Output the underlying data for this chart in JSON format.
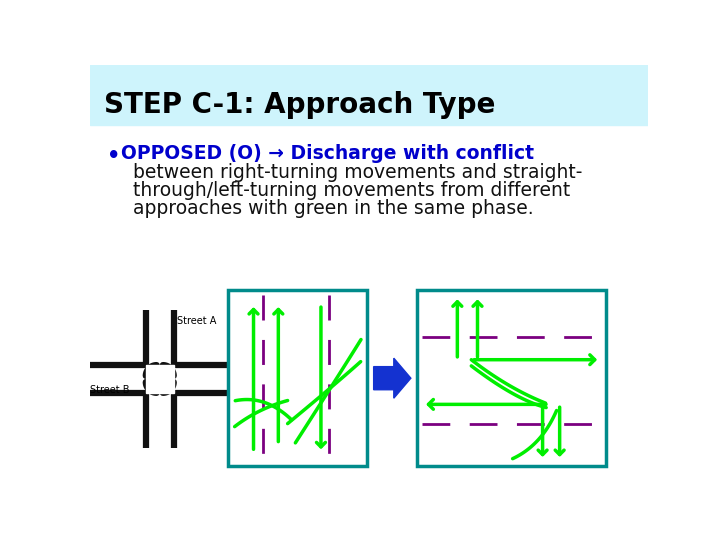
{
  "title": "STEP C-1: Approach Type",
  "title_bg": "#cef4fc",
  "title_color": "#000000",
  "body_bg": "#ffffff",
  "bullet_bold_text": "OPPOSED (O) → Discharge with conflict",
  "bullet_bold_color": "#0000cc",
  "bullet_normal_lines": [
    "between right-turning movements and straight-",
    "through/left-turning movements from different",
    "approaches with green in the same phase."
  ],
  "bullet_normal_color": "#111111",
  "diagram_box_color": "#008b8b",
  "dashed_line_color": "#7b0080",
  "arrow_color": "#00ee00",
  "blue_arrow_color": "#1432d0",
  "road_color": "#111111"
}
